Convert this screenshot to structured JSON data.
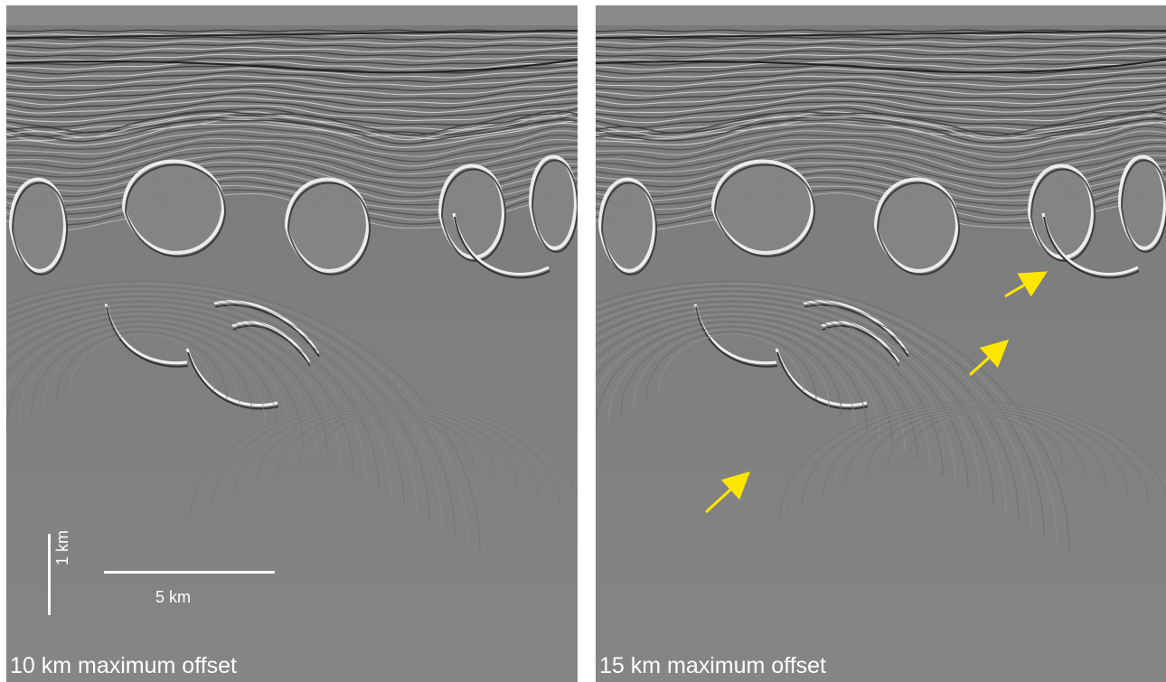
{
  "panels": {
    "left": {
      "label": "10 km maximum offset",
      "scale": {
        "vertical_label": "1 km",
        "horizontal_label": "5 km"
      }
    },
    "right": {
      "label": "15 km maximum offset",
      "arrow_color": "#ffe600"
    }
  },
  "colors": {
    "background": "#7e7e7e",
    "scale_bar": "#ffffff"
  }
}
